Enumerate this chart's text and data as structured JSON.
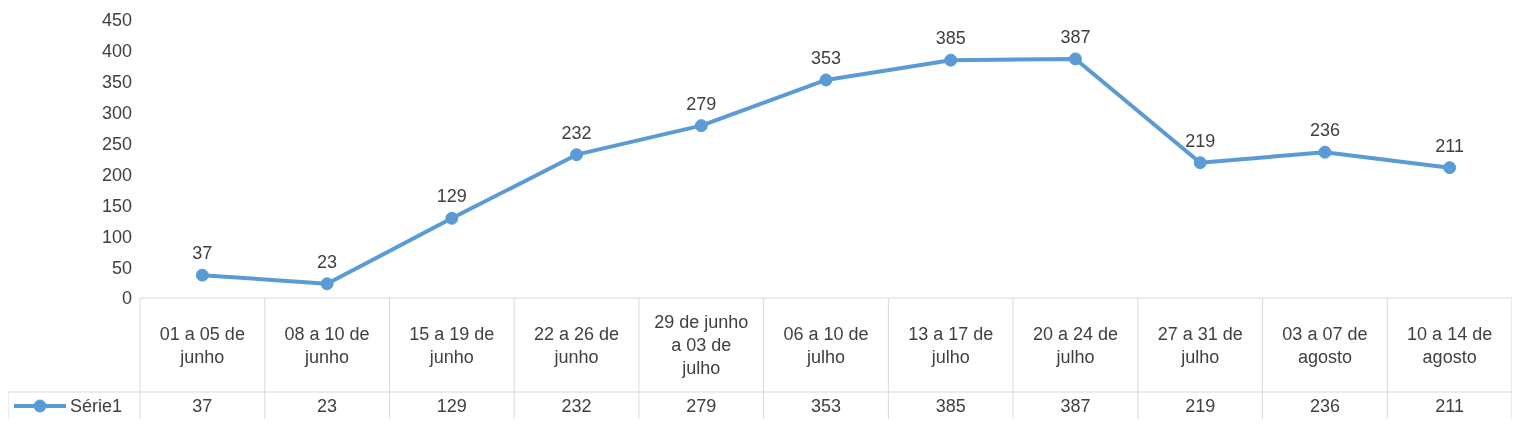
{
  "chart_data": {
    "type": "line",
    "categories": [
      "01 a 05 de junho",
      "08 a 10 de junho",
      "15 a 19 de junho",
      "22 a 26 de junho",
      "29 de junho a 03 de julho",
      "06 a 10 de julho",
      "13 a 17 de julho",
      "20 a 24 de julho",
      "27 a 31 de julho",
      "03 a 07 de agosto",
      "10 a 14 de agosto"
    ],
    "series": [
      {
        "name": "Série1",
        "color": "#5b9bd5",
        "values": [
          37,
          23,
          129,
          232,
          279,
          353,
          385,
          387,
          219,
          236,
          211
        ],
        "value_labels": [
          "37",
          "23",
          "129",
          "232",
          "279",
          "353",
          "385",
          "387",
          "219",
          "236",
          "211"
        ]
      }
    ],
    "annotations": [
      "37",
      "23",
      "129",
      "232",
      "279",
      "353",
      "385",
      "387",
      "219",
      "236",
      "211"
    ],
    "ylim": [
      0,
      450
    ],
    "yticks": [
      0,
      50,
      100,
      150,
      200,
      250,
      300,
      350,
      400,
      450
    ],
    "marker": "circle",
    "data_labels": true
  }
}
